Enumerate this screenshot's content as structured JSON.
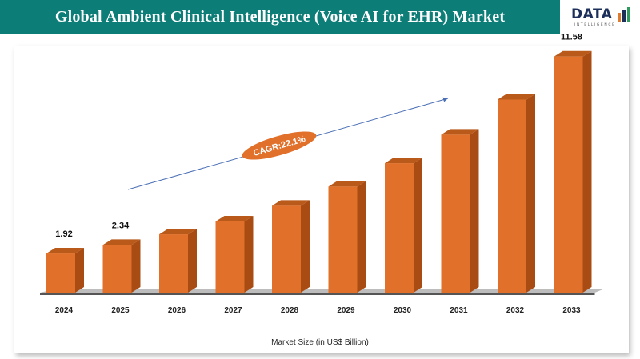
{
  "header": {
    "title": "Global Ambient Clinical Intelligence (Voice AI for EHR) Market"
  },
  "logo": {
    "word": "DATA",
    "subtitle": "INTELLIGENCE",
    "colors": [
      "#e07a2d",
      "#1b2f5a",
      "#2f9a5d"
    ]
  },
  "colors": {
    "header_bg": "#0d7d78",
    "bar_front": "#e0702a",
    "bar_side": "#a94c14",
    "bar_top": "#b95a1b",
    "floor": "#555555",
    "cagr_badge": "#e0702a",
    "trend_arrow": "#4a6fb5"
  },
  "chart_data": {
    "type": "bar",
    "categories": [
      "2024",
      "2025",
      "2026",
      "2027",
      "2028",
      "2029",
      "2030",
      "2031",
      "2032",
      "2033"
    ],
    "values": [
      1.92,
      2.34,
      2.86,
      3.49,
      4.26,
      5.2,
      6.35,
      7.75,
      9.47,
      11.58
    ],
    "data_labels": {
      "2024": "1.92",
      "2025": "2.34",
      "2033": "11.58"
    },
    "title": "Global Ambient Clinical Intelligence (Voice AI for EHR) Market",
    "xlabel": "Market Size (in US$ Billion)",
    "ylabel": "",
    "ylim": [
      0,
      12
    ],
    "grid": false,
    "annotation": {
      "text": "CAGR:22.1%"
    }
  }
}
